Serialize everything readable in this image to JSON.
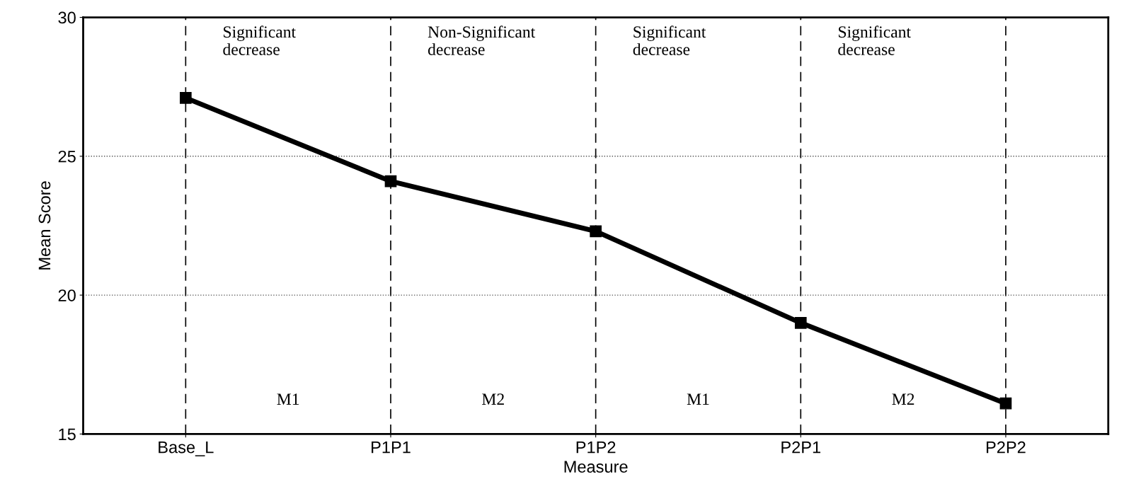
{
  "chart_data": {
    "type": "line",
    "xlabel": "Measure",
    "ylabel": "Mean Score",
    "categories": [
      "Base_L",
      "P1P1",
      "P1P2",
      "P2P1",
      "P2P2"
    ],
    "series": [
      {
        "color": "#000000",
        "values": [
          27.1,
          24.1,
          22.3,
          19.0,
          16.1
        ]
      }
    ],
    "ylim": [
      15,
      30
    ],
    "yticks": [
      15,
      20,
      25,
      30
    ],
    "grid": true,
    "marker": "square",
    "line_style": "solid",
    "annotations": [
      "Significant\ndecrease",
      "Non-Significant\ndecrease",
      "Significant\ndecrease",
      "Significant\ndecrease",
      "M1",
      "M2",
      "M1",
      "M2"
    ]
  }
}
